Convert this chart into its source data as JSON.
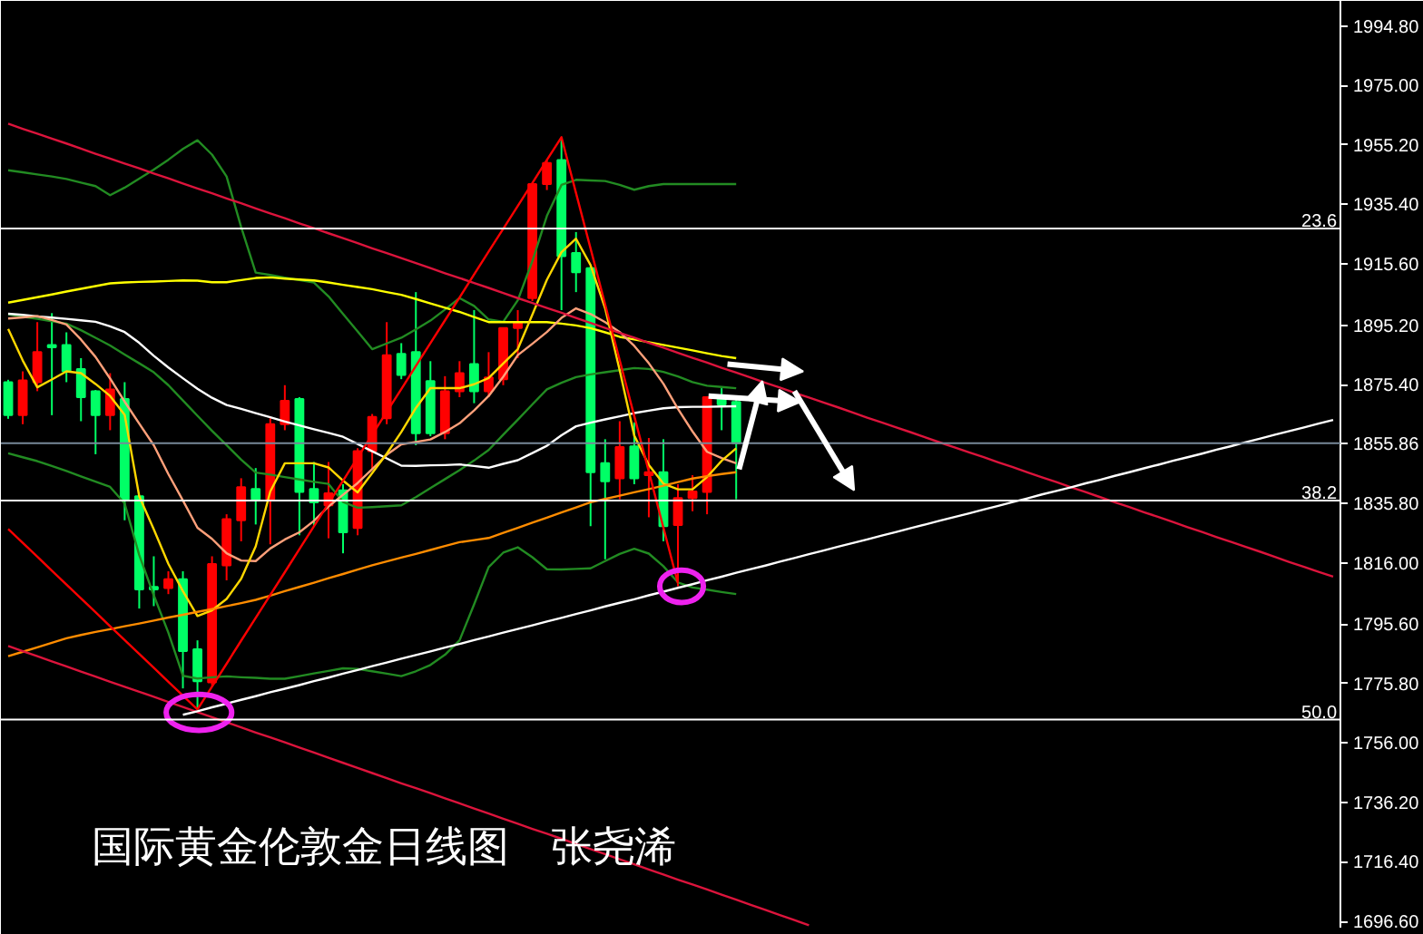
{
  "chart_data": {
    "type": "candlestick",
    "title": "国际黄金伦敦金日线图　张尧浠",
    "categories": [
      null,
      null,
      null,
      null,
      null,
      null,
      null,
      null,
      null,
      null,
      null,
      null,
      null,
      null,
      null,
      null,
      null,
      null,
      null,
      null,
      null,
      null,
      null,
      null,
      null,
      null,
      null,
      null,
      null,
      null,
      null,
      null,
      null,
      null,
      null,
      null,
      null,
      null,
      null,
      null,
      null,
      null,
      null,
      null,
      null,
      null,
      null,
      null,
      null,
      null,
      null,
      null,
      null,
      null,
      null,
      null,
      null,
      null,
      null,
      null,
      null,
      null,
      null,
      null,
      null,
      null,
      null,
      null,
      null,
      null,
      null,
      null,
      null,
      null,
      null,
      null,
      null,
      null,
      null,
      null,
      null,
      null,
      null,
      null,
      null,
      null,
      null,
      null,
      null,
      null,
      null,
      null
    ],
    "ohlc": [
      [
        1876.2,
        1877.0,
        1864.0,
        1865.2
      ],
      [
        1865.2,
        1879.8,
        1862.2,
        1876.8
      ],
      [
        1876.2,
        1896.2,
        1873.2,
        1886.2
      ],
      [
        1888.6,
        1899.2,
        1865.2,
        1887.8
      ],
      [
        1888.6,
        1892.8,
        1876.2,
        1879.8
      ],
      [
        1880.6,
        1884.2,
        1863.2,
        1871.2
      ],
      [
        1873.2,
        1873.6,
        1852.2,
        1865.2
      ],
      [
        1865.2,
        1879.2,
        1860.2,
        1873.8
      ],
      [
        1870.6,
        1876.2,
        1830.2,
        1837.2
      ],
      [
        1838.2,
        1838.2,
        1800.8,
        1807.2
      ],
      [
        1808.0,
        1818.2,
        1801.6,
        1807.2
      ],
      [
        1807.6,
        1813.2,
        1805.6,
        1810.6
      ],
      [
        1810.6,
        1813.2,
        1774.2,
        1786.6
      ],
      [
        1787.2,
        1790.2,
        1767.2,
        1776.6
      ],
      [
        1776.2,
        1818.2,
        1775.2,
        1815.6
      ],
      [
        1815.2,
        1832.2,
        1810.2,
        1830.6
      ],
      [
        1830.2,
        1844.2,
        1823.2,
        1841.2
      ],
      [
        1840.6,
        1847.6,
        1828.8,
        1837.2
      ],
      [
        1837.2,
        1864.2,
        1822.2,
        1862.2
      ],
      [
        1862.2,
        1875.2,
        1860.2,
        1870.0
      ],
      [
        1870.6,
        1871.2,
        1825.2,
        1839.6
      ],
      [
        1840.6,
        1849.6,
        1828.2,
        1836.2
      ],
      [
        1835.2,
        1849.6,
        1824.2,
        1839.2
      ],
      [
        1840.2,
        1842.2,
        1819.2,
        1826.2
      ],
      [
        1827.6,
        1854.2,
        1825.2,
        1853.2
      ],
      [
        1853.2,
        1865.6,
        1847.2,
        1864.6
      ],
      [
        1864.2,
        1896.2,
        1862.2,
        1885.2
      ],
      [
        1885.6,
        1889.2,
        1877.2,
        1878.6
      ],
      [
        1886.2,
        1906.2,
        1855.2,
        1859.2
      ],
      [
        1876.6,
        1883.2,
        1858.2,
        1859.2
      ],
      [
        1859.2,
        1878.2,
        1857.2,
        1873.2
      ],
      [
        1873.2,
        1883.2,
        1871.2,
        1879.2
      ],
      [
        1882.2,
        1900.2,
        1869.2,
        1873.2
      ],
      [
        1873.2,
        1886.2,
        1871.2,
        1877.8
      ],
      [
        1877.2,
        1894.2,
        1875.2,
        1894.2
      ],
      [
        1894.2,
        1900.2,
        1884.2,
        1896.2
      ],
      [
        1904.2,
        1942.2,
        1903.2,
        1942.2
      ],
      [
        1942.2,
        1950.2,
        1940.2,
        1949.2
      ],
      [
        1950.2,
        1957.2,
        1900.2,
        1918.2
      ],
      [
        1919.2,
        1926.2,
        1906.2,
        1912.8
      ],
      [
        1914.2,
        1914.8,
        1828.2,
        1846.2
      ],
      [
        1849.2,
        1857.2,
        1817.2,
        1843.2
      ],
      [
        1844.2,
        1863.2,
        1837.2,
        1854.6
      ],
      [
        1854.8,
        1862.8,
        1842.2,
        1844.2
      ],
      [
        1845.2,
        1857.6,
        1831.2,
        1846.2
      ],
      [
        1846.2,
        1857.2,
        1823.2,
        1828.2
      ],
      [
        1828.6,
        1842.2,
        1808.2,
        1837.6
      ],
      [
        1837.6,
        1845.2,
        1833.2,
        1839.8
      ],
      [
        1839.6,
        1871.2,
        1832.2,
        1871.2
      ],
      [
        1870.6,
        1874.2,
        1860.2,
        1868.8
      ],
      [
        1869.6,
        1871.2,
        1837.2,
        1855.86
      ],
      null,
      null,
      null,
      null,
      null,
      null,
      null,
      null,
      null,
      null,
      null,
      null,
      null,
      null,
      null,
      null,
      null,
      null,
      null,
      null,
      null,
      null,
      null,
      null,
      null,
      null,
      null,
      null,
      null,
      null,
      null,
      null,
      null,
      null,
      null,
      null,
      null,
      null,
      null,
      null,
      null
    ],
    "colors": [
      "#00ff66",
      "#ff0000",
      "#ff0000",
      "#00ff66",
      "#00ff66",
      "#00ff66",
      "#00ff66",
      "#ff0000",
      "#00ff66",
      "#00ff66",
      "#00ff66",
      "#ff0000",
      "#00ff66",
      "#00ff66",
      "#ff0000",
      "#ff0000",
      "#ff0000",
      "#00ff66",
      "#ff0000",
      "#ff0000",
      "#00ff66",
      "#00ff66",
      "#ff0000",
      "#00ff66",
      "#ff0000",
      "#ff0000",
      "#ff0000",
      "#00ff66",
      "#00ff66",
      "#00ff66",
      "#ff0000",
      "#ff0000",
      "#00ff66",
      "#ff0000",
      "#ff0000",
      "#ff0000",
      "#ff0000",
      "#ff0000",
      "#00ff66",
      "#00ff66",
      "#00ff66",
      "#00ff66",
      "#ff0000",
      "#00ff66",
      "#ff0000",
      "#00ff66",
      "#ff0000",
      "#ff0000",
      "#ff0000",
      "#00ff66",
      "#00ff66",
      null,
      null,
      null,
      null,
      null,
      null,
      null,
      null,
      null,
      null,
      null,
      null,
      null,
      null,
      null,
      null,
      null,
      null,
      null,
      null,
      null,
      null,
      null,
      null,
      null,
      null,
      null,
      null,
      null,
      null,
      null,
      null,
      null,
      null,
      null,
      null,
      null,
      null,
      null,
      null,
      null
    ],
    "ylim": [
      1694.5,
      2003.2
    ],
    "yticks": [
      {
        "value": 1994.8,
        "label": "1994.80"
      },
      {
        "value": 1975,
        "label": "1975.00"
      },
      {
        "value": 1955.2,
        "label": "1955.20"
      },
      {
        "value": 1935.4,
        "label": "1935.40"
      },
      {
        "value": 1915.6,
        "label": "1915.60"
      },
      {
        "value": 1895.2,
        "label": "1895.20"
      },
      {
        "value": 1875.4,
        "label": "1875.40"
      },
      {
        "value": 1855.86,
        "label": "1855.86"
      },
      {
        "value": 1835.8,
        "label": "1835.80"
      },
      {
        "value": 1816,
        "label": "1816.00"
      },
      {
        "value": 1795.6,
        "label": "1795.60"
      },
      {
        "value": 1775.8,
        "label": "1775.80"
      },
      {
        "value": 1756,
        "label": "1756.00"
      },
      {
        "value": 1736.2,
        "label": "1736.20"
      },
      {
        "value": 1716.4,
        "label": "1716.40"
      },
      {
        "value": 1696.6,
        "label": "1696.60"
      }
    ],
    "tick_labels": "y",
    "series": [
      {
        "type": "line",
        "color": "#228b22",
        "values": [
          1946.8,
          1946.1,
          1945.4,
          1944.7,
          1943.9,
          1942.7,
          1941.5,
          1938.5,
          1941.0,
          1944.0,
          1947.0,
          1950.3,
          1953.9,
          1956.8,
          1952.0,
          1944.7,
          1927.9,
          1912.7,
          1911.9,
          1911.0,
          1910.2,
          1909.4,
          1904.8,
          1898.9,
          1893.1,
          1887.2,
          1889.1,
          1891.0,
          1893.8,
          1896.7,
          1900.4,
          1904.2,
          1901.6,
          1897.1,
          1896.3,
          1903.5,
          1916.5,
          1931.6,
          1941.9,
          1943.6,
          1943.4,
          1943.2,
          1941.9,
          1940.3,
          1941.5,
          1942.2,
          1942.2,
          1942.2,
          1942.2,
          1942.2,
          1942.2,
          null,
          null,
          null,
          null,
          null,
          null,
          null,
          null,
          null,
          null,
          null,
          null,
          null,
          null,
          null,
          null,
          null,
          null,
          null,
          null,
          null,
          null,
          null,
          null,
          null,
          null,
          null,
          null,
          null,
          null,
          null,
          null,
          null,
          null,
          null,
          null,
          null,
          null,
          null,
          null,
          null
        ]
      },
      {
        "type": "line",
        "color": "#228b22",
        "values": [
          1898.8,
          1898.0,
          1897.3,
          1896.5,
          1895.7,
          1893.5,
          1891.0,
          1888.4,
          1885.4,
          1882.5,
          1879.5,
          1875.2,
          1870.1,
          1865.0,
          1860.0,
          1855.2,
          1850.4,
          1846.1,
          1845.4,
          1844.6,
          1843.8,
          1843.0,
          1842.3,
          1836.3,
          1834.4,
          1834.6,
          1834.9,
          1835.2,
          1837.9,
          1840.9,
          1843.9,
          1846.9,
          1850.1,
          1853.6,
          1858.7,
          1863.7,
          1868.8,
          1873.8,
          1876.0,
          1877.9,
          1878.8,
          1879.5,
          1880.2,
          1880.9,
          1880.6,
          1879.6,
          1878.1,
          1876.2,
          1875.0,
          1874.6,
          1874.2,
          null,
          null,
          null,
          null,
          null,
          null,
          null,
          null,
          null,
          null,
          null,
          null,
          null,
          null,
          null,
          null,
          null,
          null,
          null,
          null,
          null,
          null,
          null,
          null,
          null,
          null,
          null,
          null,
          null,
          null,
          null,
          null,
          null,
          null,
          null,
          null,
          null,
          null,
          null,
          null,
          null
        ]
      },
      {
        "type": "line",
        "color": "#228b22",
        "values": [
          1852.5,
          1851.2,
          1849.9,
          1848.3,
          1846.6,
          1844.8,
          1843.1,
          1841.3,
          1835.8,
          1818.6,
          1805.2,
          1792.8,
          1778.4,
          1777.5,
          1777.9,
          1778.2,
          1777.9,
          1777.7,
          1777.4,
          1777.4,
          1778.3,
          1779.2,
          1780.0,
          1780.9,
          1780.7,
          1779.9,
          1779.1,
          1778.3,
          1779.9,
          1782.0,
          1785.4,
          1790.2,
          1802.2,
          1814.6,
          1819.4,
          1821.2,
          1817.9,
          1813.9,
          1813.8,
          1814.0,
          1814.2,
          1816.6,
          1819.0,
          1820.7,
          1819.1,
          1814.9,
          1809.5,
          1807.8,
          1807.1,
          1806.3,
          1805.6,
          null,
          null,
          null,
          null,
          null,
          null,
          null,
          null,
          null,
          null,
          null,
          null,
          null,
          null,
          null,
          null,
          null,
          null,
          null,
          null,
          null,
          null,
          null,
          null,
          null,
          null,
          null,
          null,
          null,
          null,
          null,
          null,
          null,
          null,
          null,
          null,
          null,
          null,
          null,
          null,
          null
        ]
      },
      {
        "type": "line",
        "color": "#ffff00",
        "values": [
          1902.7,
          1903.6,
          1904.5,
          1905.4,
          1906.4,
          1907.3,
          1908.2,
          1909.1,
          1909.4,
          1909.6,
          1909.7,
          1909.9,
          1910.1,
          1910.0,
          1909.5,
          1909.5,
          1910.2,
          1910.9,
          1911.1,
          1910.7,
          1910.4,
          1910.1,
          1909.4,
          1908.6,
          1907.9,
          1907.2,
          1906.2,
          1905.3,
          1903.9,
          1902.4,
          1901.0,
          1899.6,
          1897.9,
          1896.2,
          1896.2,
          1896.2,
          1896.2,
          1896.2,
          1895.7,
          1895.1,
          1894.2,
          1892.8,
          1891.3,
          1890.4,
          1889.5,
          1888.6,
          1887.7,
          1886.8,
          1885.8,
          1884.9,
          1884.2,
          null,
          null,
          null,
          null,
          null,
          null,
          null,
          null,
          null,
          null,
          null,
          null,
          null,
          null,
          null,
          null,
          null,
          null,
          null,
          null,
          null,
          null,
          null,
          null,
          null,
          null,
          null,
          null,
          null,
          null,
          null,
          null,
          null,
          null,
          null,
          null,
          null,
          null,
          null,
          null,
          null
        ]
      },
      {
        "type": "line",
        "color": "#ffffff",
        "values": [
          1899.0,
          1898.6,
          1898.1,
          1897.7,
          1897.3,
          1896.8,
          1896.3,
          1894.8,
          1892.9,
          1889.3,
          1885.0,
          1881.1,
          1877.5,
          1874.0,
          1871.0,
          1868.6,
          1867.3,
          1865.9,
          1864.5,
          1863.1,
          1861.8,
          1860.5,
          1859.3,
          1858.0,
          1855.6,
          1853.2,
          1850.8,
          1848.4,
          1848.3,
          1848.5,
          1848.6,
          1848.8,
          1848.3,
          1847.7,
          1849.0,
          1850.2,
          1852.6,
          1855.0,
          1858.5,
          1861.5,
          1862.7,
          1863.8,
          1864.8,
          1865.9,
          1866.7,
          1867.5,
          1867.9,
          1868.0,
          1868.0,
          1868.1,
          1868.2,
          null,
          null,
          null,
          null,
          null,
          null,
          null,
          null,
          null,
          null,
          null,
          null,
          null,
          null,
          null,
          null,
          null,
          null,
          null,
          null,
          null,
          null,
          null,
          null,
          null,
          null,
          null,
          null,
          null,
          null,
          null,
          null,
          null,
          null,
          null,
          null,
          null,
          null,
          null,
          null,
          null
        ]
      },
      {
        "type": "line",
        "color": "#ffa07a",
        "values": [
          1897.4,
          1897.8,
          1898.2,
          1896.9,
          1895.4,
          1890.4,
          1884.6,
          1877.4,
          1869.7,
          1862.4,
          1855.2,
          1845.6,
          1836.8,
          1827.7,
          1824.0,
          1819.2,
          1816.8,
          1816.6,
          1820.8,
          1823.8,
          1826.2,
          1830.0,
          1834.8,
          1838.7,
          1842.6,
          1847.2,
          1852.0,
          1855.5,
          1856.3,
          1857.1,
          1859.6,
          1862.5,
          1866.8,
          1871.6,
          1878.0,
          1885.2,
          1889.0,
          1892.9,
          1897.6,
          1900.8,
          1898.9,
          1896.2,
          1892.9,
          1888.3,
          1882.5,
          1875.7,
          1867.3,
          1859.8,
          1853.0,
          1850.9,
          1849.2,
          null,
          null,
          null,
          null,
          null,
          null,
          null,
          null,
          null,
          null,
          null,
          null,
          null,
          null,
          null,
          null,
          null,
          null,
          null,
          null,
          null,
          null,
          null,
          null,
          null,
          null,
          null,
          null,
          null,
          null,
          null,
          null,
          null,
          null,
          null,
          null,
          null,
          null,
          null,
          null,
          null
        ]
      },
      {
        "type": "line",
        "color": "#ffd700",
        "values": [
          1893.9,
          1883.4,
          1874.5,
          1877.1,
          1879.8,
          1879.2,
          1875.6,
          1871.6,
          1865.3,
          1838.2,
          1827.2,
          1815.7,
          1806.6,
          1798.3,
          1800.2,
          1804.0,
          1810.7,
          1821.5,
          1839.8,
          1849.2,
          1849.2,
          1849.2,
          1847.8,
          1843.4,
          1839.5,
          1845.9,
          1852.4,
          1859.6,
          1867.6,
          1874.2,
          1874.2,
          1874.2,
          1875.5,
          1877.6,
          1882.4,
          1887.2,
          1898.7,
          1910.3,
          1919.5,
          1924.0,
          1915.2,
          1900.8,
          1880.1,
          1858.4,
          1848.6,
          1842.4,
          1840.5,
          1840.5,
          1844.6,
          1850.0,
          1854.2,
          null,
          null,
          null,
          null,
          null,
          null,
          null,
          null,
          null,
          null,
          null,
          null,
          null,
          null,
          null,
          null,
          null,
          null,
          null,
          null,
          null,
          null,
          null,
          null,
          null,
          null,
          null,
          null,
          null,
          null,
          null,
          null,
          null,
          null,
          null,
          null,
          null,
          null,
          null,
          null,
          null
        ]
      },
      {
        "type": "line",
        "color": "#ff8c00",
        "values": [
          1784.9,
          1786.4,
          1787.9,
          1789.4,
          1790.9,
          1792.0,
          1793.0,
          1793.9,
          1794.9,
          1795.8,
          1796.8,
          1797.8,
          1798.7,
          1799.7,
          1800.6,
          1801.6,
          1802.6,
          1803.7,
          1805.1,
          1806.6,
          1808.0,
          1809.4,
          1810.9,
          1812.3,
          1813.8,
          1815.2,
          1816.5,
          1817.8,
          1819.0,
          1820.3,
          1821.6,
          1822.9,
          1823.6,
          1824.3,
          1826.0,
          1827.7,
          1829.4,
          1831.1,
          1832.8,
          1834.5,
          1836.2,
          1837.3,
          1838.4,
          1839.5,
          1840.6,
          1841.7,
          1842.9,
          1844.1,
          1844.9,
          1845.6,
          1846.2,
          null,
          null,
          null,
          null,
          null,
          null,
          null,
          null,
          null,
          null,
          null,
          null,
          null,
          null,
          null,
          null,
          null,
          null,
          null,
          null,
          null,
          null,
          null,
          null,
          null,
          null,
          null,
          null,
          null,
          null,
          null,
          null,
          null,
          null,
          null,
          null,
          null,
          null,
          null,
          null,
          null
        ]
      },
      {
        "type": "line",
        "color": "#dc143c",
        "values": [
          1962.3,
          1960.6,
          1959.0,
          1957.3,
          1955.7,
          1954.0,
          1952.3,
          1950.7,
          1949.0,
          1947.4,
          1945.7,
          1944.1,
          1942.4,
          1940.7,
          1939.1,
          1937.4,
          1935.8,
          1934.1,
          1932.4,
          1930.8,
          1929.1,
          1927.5,
          1925.8,
          1924.2,
          1922.5,
          1920.8,
          1919.2,
          1917.5,
          1915.9,
          1914.2,
          1912.5,
          1910.9,
          1909.2,
          1907.6,
          1905.9,
          1904.2,
          1902.6,
          1900.9,
          1899.3,
          1897.6,
          1895.9,
          1894.3,
          1892.6,
          1891.0,
          1889.3,
          1887.7,
          1886.0,
          1884.3,
          1882.7,
          1881.0,
          1879.4,
          1877.7,
          1876.0,
          1874.4,
          1872.7,
          1871.1,
          1869.4,
          1867.8,
          1866.1,
          1864.4,
          1862.8,
          1861.1,
          1859.5,
          1857.8,
          1856.1,
          1854.5,
          1852.8,
          1851.2,
          1849.5,
          1847.9,
          1846.2,
          1844.5,
          1842.9,
          1841.2,
          1839.6,
          1837.9,
          1836.2,
          1834.6,
          1832.9,
          1831.3,
          1829.6,
          1827.9,
          1826.3,
          1824.6,
          1823.0,
          1821.3,
          1819.7,
          1818.0,
          1816.3,
          1814.7,
          1813.0,
          1811.4
        ]
      },
      {
        "type": "line",
        "color": "#dc143c",
        "values": [
          1788.3,
          1786.6,
          1784.9,
          1783.2,
          1781.5,
          1779.8,
          1778.1,
          1776.4,
          1774.7,
          1773.1,
          1771.4,
          1769.7,
          1768.0,
          1766.3,
          1764.6,
          1762.9,
          1761.2,
          1759.5,
          1757.9,
          1756.2,
          1754.5,
          1752.8,
          1751.1,
          1749.4,
          1747.7,
          1746.0,
          1744.3,
          1742.6,
          1741.0,
          1739.3,
          1737.6,
          1735.9,
          1734.2,
          1732.5,
          1730.8,
          1729.1,
          1727.4,
          1725.8,
          1724.1,
          1722.4,
          1720.7,
          1719.0,
          1717.3,
          1715.6,
          1713.9,
          1712.2,
          1710.5,
          1708.9,
          1707.2,
          1705.5,
          1703.8,
          1702.1,
          1700.4,
          1698.7,
          1697.0,
          1695.3,
          null,
          null,
          null,
          null,
          null,
          null,
          null,
          null,
          null,
          null,
          null,
          null,
          null,
          null,
          null,
          null,
          null,
          null,
          null,
          null,
          null,
          null,
          null,
          null,
          null,
          null,
          null,
          null,
          null,
          null,
          null,
          null,
          null,
          null,
          null,
          null
        ]
      },
      {
        "type": "line",
        "color": "#ff0000",
        "values": [
          1827.3,
          1822.7,
          1818.1,
          1813.4,
          1808.8,
          1804.2,
          1799.6,
          1794.9,
          1790.3,
          1785.7,
          1781.1,
          1776.4,
          1771.8,
          1767.2,
          1774.8,
          1782.4,
          1790.1,
          1797.7,
          1805.3,
          1812.9,
          1820.6,
          1828.2,
          1835.8,
          1843.4,
          1851.1,
          1858.7,
          1866.3,
          1873.9,
          1881.6,
          1889.2,
          1896.8,
          1904.4,
          1912.1,
          1919.7,
          1927.3,
          1934.9,
          1942.5,
          1950.2,
          1957.8,
          1939.2,
          1920.7,
          1902.1,
          1883.5,
          1864.9,
          1846.4,
          1827.8,
          1809.2,
          null,
          null,
          null,
          null,
          null,
          null,
          null,
          null,
          null,
          null,
          null,
          null,
          null,
          null,
          null,
          null,
          null,
          null,
          null,
          null,
          null,
          null,
          null,
          null,
          null,
          null,
          null,
          null,
          null,
          null,
          null,
          null,
          null,
          null,
          null,
          null,
          null,
          null,
          null,
          null,
          null,
          null,
          null,
          null,
          null
        ]
      },
      {
        "type": "line",
        "color": "#ffffff",
        "values": [
          null,
          null,
          null,
          null,
          null,
          null,
          null,
          null,
          null,
          null,
          null,
          null,
          1765.4,
          1766.6,
          1767.9,
          1769.1,
          1770.4,
          1771.6,
          1772.9,
          1774.1,
          1775.3,
          1776.6,
          1777.8,
          1779.1,
          1780.3,
          1781.6,
          1782.8,
          1784.1,
          1785.3,
          1786.5,
          1787.8,
          1789.0,
          1790.3,
          1791.5,
          1792.8,
          1794.0,
          1795.2,
          1796.5,
          1797.7,
          1799.0,
          1800.2,
          1801.5,
          1802.7,
          1803.9,
          1805.2,
          1806.4,
          1807.7,
          1808.9,
          1810.2,
          1811.4,
          1812.7,
          1813.9,
          1815.1,
          1816.4,
          1817.6,
          1818.9,
          1820.1,
          1821.4,
          1822.6,
          1823.8,
          1825.1,
          1826.3,
          1827.6,
          1828.8,
          1830.1,
          1831.3,
          1832.5,
          1833.8,
          1835.0,
          1836.3,
          1837.5,
          1838.8,
          1840.0,
          1841.2,
          1842.5,
          1843.7,
          1845.0,
          1846.2,
          1847.5,
          1848.7,
          1850.0,
          1851.2,
          1852.4,
          1853.7,
          1854.9,
          1856.2,
          1857.4,
          1858.7,
          1859.9,
          1861.1,
          1862.4,
          1863.6
        ]
      }
    ],
    "ref_lines": [
      {
        "axis": "y",
        "value": 1927.4,
        "color": "#ffffff"
      },
      {
        "axis": "y",
        "value": 1836.8,
        "color": "#ffffff"
      },
      {
        "axis": "y",
        "value": 1763.8,
        "color": "#ffffff"
      },
      {
        "axis": "y",
        "value": 1855.86,
        "color": "#778899"
      }
    ],
    "annotations": [
      {
        "text": "23.6",
        "y": 1927.4
      },
      {
        "text": "38.2",
        "y": 1836.8
      },
      {
        "text": "50.0",
        "y": 1763.8
      }
    ]
  }
}
